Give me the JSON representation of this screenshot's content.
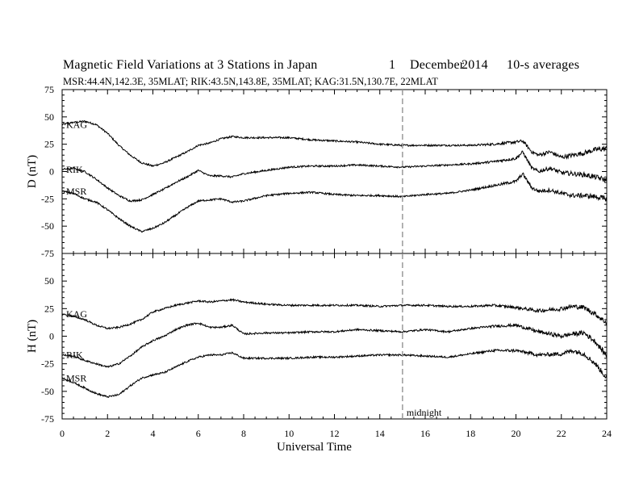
{
  "header": {
    "title": "Magnetic Field Variations at 3 Stations in Japan",
    "day": "1",
    "month": "December",
    "year": "2014",
    "averaging": "10-s averages",
    "stations_line": "MSR:44.4N,142.3E, 35MLAT;  RIK:43.5N,143.8E, 35MLAT;  KAG:31.5N,130.7E, 22MLAT"
  },
  "chart_data": [
    {
      "type": "line",
      "panel": "top",
      "ylabel": "D (nT)",
      "xlabel": "",
      "xlim": [
        0,
        24
      ],
      "ylim": [
        -75,
        75
      ],
      "yticks": [
        -75,
        -50,
        -25,
        0,
        25,
        50,
        75
      ],
      "series": [
        {
          "name": "KAG",
          "x": [
            0,
            0.5,
            1,
            1.5,
            2,
            2.5,
            3,
            3.5,
            4,
            4.5,
            5,
            5.5,
            6,
            6.5,
            7,
            7.5,
            8,
            9,
            10,
            11,
            12,
            13,
            14,
            15,
            16,
            17,
            18,
            19,
            20,
            20.3,
            20.7,
            21,
            21.5,
            22,
            22.5,
            23,
            23.5,
            24
          ],
          "y": [
            43,
            45,
            46,
            43,
            35,
            24,
            15,
            8,
            5,
            8,
            13,
            18,
            24,
            26,
            30,
            32,
            31,
            31,
            31,
            29,
            28,
            27,
            25,
            24,
            24,
            24,
            24,
            25,
            27,
            28,
            18,
            15,
            18,
            13,
            15,
            17,
            20,
            21
          ]
        },
        {
          "name": "RIK",
          "x": [
            0,
            0.5,
            1,
            1.5,
            2,
            2.5,
            3,
            3.5,
            4,
            4.5,
            5,
            5.5,
            6,
            6.5,
            7,
            7.5,
            8,
            9,
            10,
            11,
            12,
            13,
            14,
            15,
            16,
            17,
            18,
            19,
            20,
            20.3,
            20.7,
            21,
            21.5,
            22,
            22.5,
            23,
            23.5,
            24
          ],
          "y": [
            2,
            3,
            0,
            -7,
            -15,
            -22,
            -27,
            -26,
            -21,
            -16,
            -10,
            -5,
            1,
            -4,
            -4,
            -5,
            -2,
            1,
            4,
            5,
            5,
            6,
            5,
            4,
            5,
            6,
            7,
            9,
            12,
            18,
            3,
            0,
            3,
            -1,
            -2,
            -3,
            -5,
            -8
          ]
        },
        {
          "name": "MSR",
          "x": [
            0,
            0.5,
            1,
            1.5,
            2,
            2.5,
            3,
            3.5,
            4,
            4.5,
            5,
            5.5,
            6,
            6.5,
            7,
            7.5,
            8,
            9,
            10,
            11,
            12,
            13,
            14,
            15,
            16,
            17,
            18,
            19,
            20,
            20.3,
            20.7,
            21,
            21.5,
            22,
            22.5,
            23,
            23.5,
            24
          ],
          "y": [
            -18,
            -20,
            -25,
            -28,
            -35,
            -43,
            -50,
            -55,
            -52,
            -47,
            -40,
            -33,
            -27,
            -26,
            -25,
            -28,
            -27,
            -22,
            -20,
            -19,
            -21,
            -22,
            -22,
            -23,
            -21,
            -20,
            -17,
            -13,
            -9,
            -2,
            -15,
            -18,
            -17,
            -20,
            -22,
            -22,
            -23,
            -25
          ]
        }
      ]
    },
    {
      "type": "line",
      "panel": "bottom",
      "ylabel": "H (nT)",
      "xlabel": "Universal Time",
      "xlim": [
        0,
        24
      ],
      "ylim": [
        -75,
        75
      ],
      "yticks": [
        -75,
        -50,
        -25,
        0,
        25,
        50
      ],
      "xticks": [
        0,
        2,
        4,
        6,
        8,
        10,
        12,
        14,
        16,
        18,
        20,
        22,
        24
      ],
      "series": [
        {
          "name": "KAG",
          "x": [
            0,
            0.5,
            1,
            1.5,
            2,
            2.5,
            3,
            3.5,
            4,
            4.5,
            5,
            5.5,
            6,
            6.5,
            7,
            7.5,
            8,
            9,
            10,
            11,
            12,
            13,
            14,
            15,
            16,
            17,
            18,
            19,
            20,
            21,
            22,
            22.5,
            23,
            23.5,
            24
          ],
          "y": [
            20,
            18,
            15,
            10,
            7,
            8,
            11,
            15,
            22,
            25,
            28,
            30,
            32,
            31,
            32,
            33,
            31,
            29,
            28,
            28,
            28,
            28,
            27,
            28,
            28,
            27,
            27,
            28,
            26,
            23,
            25,
            27,
            26,
            20,
            12
          ]
        },
        {
          "name": "RIK",
          "x": [
            0,
            0.5,
            1,
            1.5,
            2,
            2.5,
            3,
            3.5,
            4,
            4.5,
            5,
            5.5,
            6,
            6.5,
            7,
            7.5,
            8,
            9,
            10,
            11,
            12,
            13,
            14,
            15,
            16,
            17,
            18,
            19,
            20,
            21,
            22,
            22.5,
            23,
            23.5,
            24
          ],
          "y": [
            -17,
            -18,
            -22,
            -25,
            -28,
            -25,
            -18,
            -10,
            -4,
            0,
            6,
            10,
            12,
            8,
            8,
            10,
            2,
            3,
            3,
            4,
            4,
            6,
            5,
            4,
            6,
            4,
            7,
            9,
            10,
            4,
            0,
            2,
            3,
            -5,
            -18
          ]
        },
        {
          "name": "MSR",
          "x": [
            0,
            0.5,
            1,
            1.5,
            2,
            2.5,
            3,
            3.5,
            4,
            4.5,
            5,
            5.5,
            6,
            6.5,
            7,
            7.5,
            8,
            9,
            10,
            11,
            12,
            13,
            14,
            15,
            16,
            17,
            18,
            19,
            20,
            21,
            22,
            22.5,
            23,
            23.5,
            24
          ],
          "y": [
            -38,
            -42,
            -47,
            -52,
            -55,
            -53,
            -45,
            -38,
            -35,
            -33,
            -28,
            -23,
            -19,
            -17,
            -17,
            -15,
            -20,
            -20,
            -20,
            -19,
            -19,
            -18,
            -17,
            -17,
            -18,
            -19,
            -16,
            -13,
            -13,
            -17,
            -16,
            -13,
            -16,
            -25,
            -38
          ]
        }
      ]
    }
  ],
  "annotations": {
    "midnight_label": "midnight",
    "midnight_ut": 15
  }
}
